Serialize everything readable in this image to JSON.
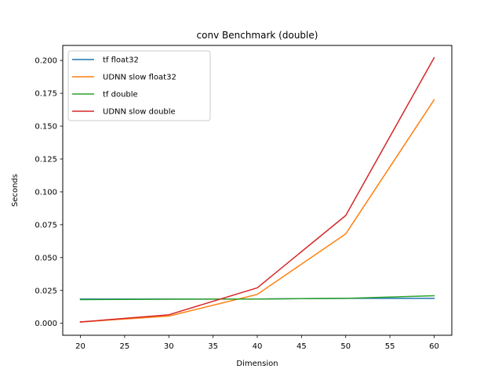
{
  "chart_data": {
    "type": "line",
    "title": "conv Benchmark (double)",
    "xlabel": "Dimension",
    "ylabel": "Seconds",
    "x": [
      20,
      30,
      40,
      50,
      60
    ],
    "xlim": [
      18,
      62
    ],
    "ylim": [
      -0.0091,
      0.2114
    ],
    "xticks": [
      20,
      25,
      30,
      35,
      40,
      45,
      50,
      55,
      60
    ],
    "yticks": [
      0.0,
      0.025,
      0.05,
      0.075,
      0.1,
      0.125,
      0.15,
      0.175,
      0.2
    ],
    "xtick_labels": [
      "20",
      "25",
      "30",
      "35",
      "40",
      "45",
      "50",
      "55",
      "60"
    ],
    "ytick_labels": [
      "0.000",
      "0.025",
      "0.050",
      "0.075",
      "0.100",
      "0.125",
      "0.150",
      "0.175",
      "0.200"
    ],
    "grid": false,
    "legend_position": "top-left",
    "series": [
      {
        "name": "tf float32",
        "color": "#1f77b4",
        "values": [
          0.0185,
          0.0185,
          0.0185,
          0.019,
          0.019
        ]
      },
      {
        "name": "UDNN slow float32",
        "color": "#ff7f0e",
        "values": [
          0.001,
          0.0055,
          0.022,
          0.068,
          0.17
        ]
      },
      {
        "name": "tf double",
        "color": "#2ca02c",
        "values": [
          0.018,
          0.0183,
          0.0185,
          0.019,
          0.021
        ]
      },
      {
        "name": "UDNN slow double",
        "color": "#d62728",
        "values": [
          0.001,
          0.0065,
          0.027,
          0.082,
          0.202
        ]
      }
    ]
  }
}
